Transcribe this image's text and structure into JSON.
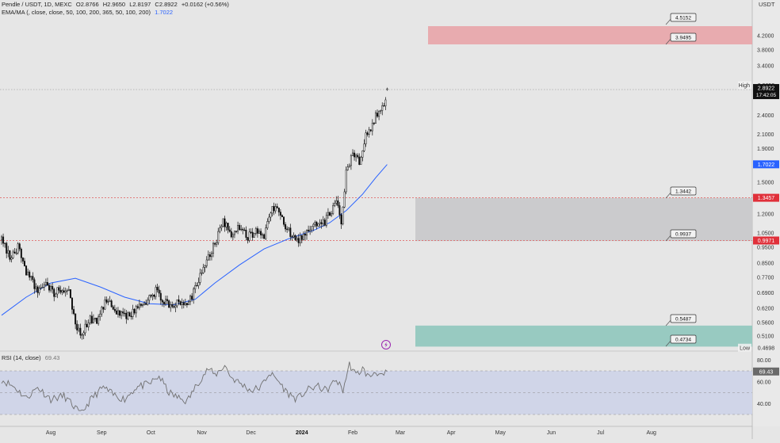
{
  "header": {
    "symbol": "Pendle / USDT, 1D, MEXC",
    "open": "O2.8766",
    "high": "H2.9650",
    "low": "L2.8197",
    "close": "C2.8922",
    "change": "+0.0162 (+0.56%)",
    "indicator": "EMA/MA (, close, close, 50, 100, 200, 365, 50, 100, 200)",
    "indicator_value": "1.7022",
    "rsi_label": "RSI (14, close)",
    "rsi_value": "69.43"
  },
  "colors": {
    "background": "#e6e6e6",
    "candle": "#111111",
    "ema_line": "#2962ff",
    "rsi_line": "#707070",
    "rsi_band": "#cdd3e8",
    "resistance_zone": "#e8a4a8",
    "range_zone": "#c9c9cb",
    "support_zone": "#93c8bf",
    "level_line": "#e05a5a",
    "last_price_tag": "#111111",
    "ema_tag": "#2962ff",
    "level_tag": "#e0303a"
  },
  "chart_data": {
    "type": "candlestick",
    "scale": "log",
    "currency": "USDT",
    "last_price": 2.8922,
    "countdown": "17:42:05",
    "ema_value": 1.7022,
    "high_label": "High",
    "low_label": "Low",
    "high_value": 2.965,
    "low_value": 0.4698,
    "y_ticks": [
      "4.2000",
      "3.8000",
      "3.4000",
      "2.4000",
      "2.1000",
      "1.9000",
      "1.5000",
      "1.2000",
      "1.0500",
      "0.9500",
      "0.8500",
      "0.7700",
      "0.6900",
      "0.6200",
      "0.5600",
      "0.5100"
    ],
    "x_ticks": [
      "Aug",
      "Sep",
      "Oct",
      "Nov",
      "Dec",
      "2024",
      "Feb",
      "Mar",
      "Apr",
      "May",
      "Jun",
      "Jul",
      "Aug"
    ],
    "price_levels": [
      {
        "value": 1.3457,
        "label": "1.3457"
      },
      {
        "value": 0.9971,
        "label": "0.9971"
      }
    ],
    "zones": [
      {
        "name": "resistance",
        "top": 4.5152,
        "bottom": 3.9495
      },
      {
        "name": "range",
        "top": 1.3442,
        "bottom": 0.9937
      },
      {
        "name": "support",
        "top": 0.5487,
        "bottom": 0.4734
      }
    ],
    "callouts": [
      "4.5152",
      "3.9495",
      "1.3442",
      "0.9937",
      "0.5487",
      "0.4734"
    ],
    "rsi": {
      "last": 69.43,
      "upper": 70,
      "middle": 50,
      "lower": 30,
      "ticks": [
        "80.00",
        "60.00",
        "40.00"
      ],
      "ylim": [
        25,
        85
      ]
    },
    "anchors": [
      {
        "d": 0,
        "c": 1.0
      },
      {
        "d": 5,
        "c": 0.9
      },
      {
        "d": 10,
        "c": 0.95
      },
      {
        "d": 15,
        "c": 0.8
      },
      {
        "d": 22,
        "c": 0.7
      },
      {
        "d": 27,
        "c": 0.74
      },
      {
        "d": 32,
        "c": 0.69
      },
      {
        "d": 37,
        "c": 0.72
      },
      {
        "d": 42,
        "c": 0.68
      },
      {
        "d": 45,
        "c": 0.55
      },
      {
        "d": 48,
        "c": 0.52
      },
      {
        "d": 54,
        "c": 0.57
      },
      {
        "d": 58,
        "c": 0.56
      },
      {
        "d": 64,
        "c": 0.66
      },
      {
        "d": 70,
        "c": 0.6
      },
      {
        "d": 76,
        "c": 0.58
      },
      {
        "d": 82,
        "c": 0.62
      },
      {
        "d": 87,
        "c": 0.64
      },
      {
        "d": 94,
        "c": 0.7
      },
      {
        "d": 98,
        "c": 0.66
      },
      {
        "d": 103,
        "c": 0.63
      },
      {
        "d": 110,
        "c": 0.65
      },
      {
        "d": 113,
        "c": 0.62
      },
      {
        "d": 118,
        "c": 0.72
      },
      {
        "d": 125,
        "c": 0.86
      },
      {
        "d": 130,
        "c": 0.98
      },
      {
        "d": 135,
        "c": 1.13
      },
      {
        "d": 140,
        "c": 1.05
      },
      {
        "d": 145,
        "c": 1.1
      },
      {
        "d": 150,
        "c": 1.02
      },
      {
        "d": 155,
        "c": 1.07
      },
      {
        "d": 160,
        "c": 1.03
      },
      {
        "d": 163,
        "c": 1.2
      },
      {
        "d": 167,
        "c": 1.28
      },
      {
        "d": 172,
        "c": 1.13
      },
      {
        "d": 176,
        "c": 1.05
      },
      {
        "d": 180,
        "c": 1.0
      },
      {
        "d": 186,
        "c": 1.05
      },
      {
        "d": 190,
        "c": 1.12
      },
      {
        "d": 195,
        "c": 1.1
      },
      {
        "d": 200,
        "c": 1.2
      },
      {
        "d": 204,
        "c": 1.3
      },
      {
        "d": 207,
        "c": 1.12
      },
      {
        "d": 210,
        "c": 1.6
      },
      {
        "d": 214,
        "c": 1.85
      },
      {
        "d": 218,
        "c": 1.75
      },
      {
        "d": 222,
        "c": 2.1
      },
      {
        "d": 226,
        "c": 2.25
      },
      {
        "d": 230,
        "c": 2.5
      },
      {
        "d": 233,
        "c": 2.6
      },
      {
        "d": 235,
        "c": 2.89
      }
    ],
    "ema_anchors": [
      {
        "d": 0,
        "c": 0.59
      },
      {
        "d": 15,
        "c": 0.67
      },
      {
        "d": 30,
        "c": 0.74
      },
      {
        "d": 45,
        "c": 0.765
      },
      {
        "d": 60,
        "c": 0.72
      },
      {
        "d": 75,
        "c": 0.67
      },
      {
        "d": 90,
        "c": 0.64
      },
      {
        "d": 105,
        "c": 0.635
      },
      {
        "d": 118,
        "c": 0.66
      },
      {
        "d": 130,
        "c": 0.74
      },
      {
        "d": 145,
        "c": 0.84
      },
      {
        "d": 160,
        "c": 0.94
      },
      {
        "d": 175,
        "c": 1.01
      },
      {
        "d": 190,
        "c": 1.07
      },
      {
        "d": 200,
        "c": 1.13
      },
      {
        "d": 210,
        "c": 1.23
      },
      {
        "d": 220,
        "c": 1.38
      },
      {
        "d": 228,
        "c": 1.55
      },
      {
        "d": 235,
        "c": 1.7
      }
    ],
    "rsi_anchors": [
      {
        "d": 0,
        "r": 62
      },
      {
        "d": 8,
        "r": 55
      },
      {
        "d": 15,
        "r": 45
      },
      {
        "d": 22,
        "r": 55
      },
      {
        "d": 30,
        "r": 44
      },
      {
        "d": 38,
        "r": 47
      },
      {
        "d": 45,
        "r": 36
      },
      {
        "d": 48,
        "r": 30
      },
      {
        "d": 55,
        "r": 45
      },
      {
        "d": 62,
        "r": 55
      },
      {
        "d": 68,
        "r": 48
      },
      {
        "d": 75,
        "r": 44
      },
      {
        "d": 82,
        "r": 55
      },
      {
        "d": 90,
        "r": 58
      },
      {
        "d": 96,
        "r": 65
      },
      {
        "d": 102,
        "r": 50
      },
      {
        "d": 108,
        "r": 45
      },
      {
        "d": 113,
        "r": 42
      },
      {
        "d": 120,
        "r": 60
      },
      {
        "d": 126,
        "r": 72
      },
      {
        "d": 130,
        "r": 66
      },
      {
        "d": 136,
        "r": 75
      },
      {
        "d": 140,
        "r": 64
      },
      {
        "d": 146,
        "r": 58
      },
      {
        "d": 152,
        "r": 52
      },
      {
        "d": 158,
        "r": 55
      },
      {
        "d": 163,
        "r": 68
      },
      {
        "d": 168,
        "r": 62
      },
      {
        "d": 174,
        "r": 50
      },
      {
        "d": 180,
        "r": 44
      },
      {
        "d": 186,
        "r": 52
      },
      {
        "d": 192,
        "r": 56
      },
      {
        "d": 198,
        "r": 52
      },
      {
        "d": 204,
        "r": 62
      },
      {
        "d": 208,
        "r": 52
      },
      {
        "d": 212,
        "r": 76
      },
      {
        "d": 216,
        "r": 66
      },
      {
        "d": 220,
        "r": 72
      },
      {
        "d": 224,
        "r": 64
      },
      {
        "d": 228,
        "r": 70
      },
      {
        "d": 232,
        "r": 64
      },
      {
        "d": 235,
        "r": 69.43
      }
    ]
  }
}
